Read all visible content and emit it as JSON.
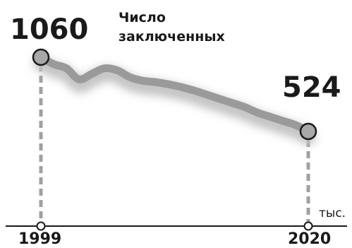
{
  "chart_data": {
    "type": "line",
    "title_lines": [
      "Число",
      "заключенных"
    ],
    "unit": "тыс.",
    "x": [
      1999,
      2000,
      2001,
      2002,
      2003,
      2004,
      2005,
      2006,
      2007,
      2008,
      2009,
      2010,
      2011,
      2012,
      2013,
      2014,
      2015,
      2016,
      2017,
      2018,
      2019,
      2020
    ],
    "values": [
      1060,
      1010,
      980,
      900,
      940,
      980,
      965,
      915,
      890,
      880,
      865,
      845,
      820,
      790,
      760,
      730,
      700,
      660,
      630,
      600,
      570,
      524
    ],
    "start_label": "1060",
    "end_label": "524",
    "x_tick_labels": [
      "1999",
      "2020"
    ],
    "ylim": [
      0,
      1100
    ],
    "grid": false,
    "legend": "none"
  },
  "colors": {
    "line": "#9a9a9a",
    "shadow": "#c4c4c4",
    "marker": "#a8a8a8",
    "dash": "#a0a0a0",
    "axis": "#1a1a1a"
  }
}
